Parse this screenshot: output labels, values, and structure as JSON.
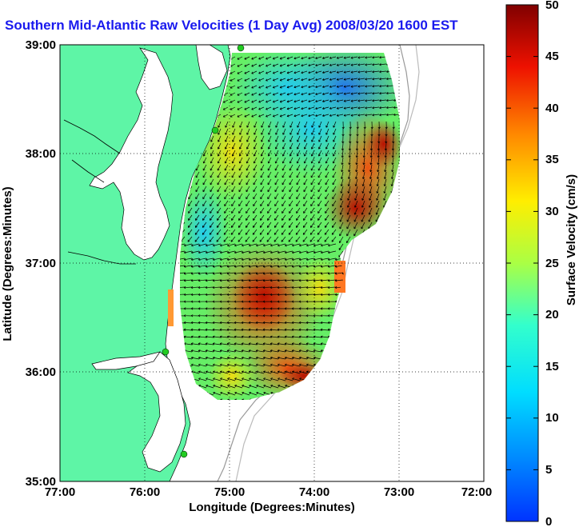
{
  "title": "Southern Mid-Atlantic Raw Velocities (1 Day Avg) 2008/03/20 1600 EST",
  "map": {
    "x_axis_label": "Longitude (Degrees:Minutes)",
    "y_axis_label": "Latitude (Degrees:Minutes)",
    "x_ticks": [
      "77:00",
      "76:00",
      "75:00",
      "74:00",
      "73:00",
      "72:00"
    ],
    "y_ticks": [
      "39:00",
      "38:00",
      "37:00",
      "36:00",
      "35:00"
    ],
    "lon_range": [
      -77,
      -72
    ],
    "lat_range": [
      35,
      39
    ],
    "grid": "dotted at each degree",
    "colors": {
      "land": "#5ef5a6",
      "water": "#ffffff",
      "arrows": "#000000",
      "stations": "#22cc22"
    }
  },
  "colorbar": {
    "label": "Surface Velocity (cm/s)",
    "ticks": [
      "50",
      "45",
      "40",
      "35",
      "30",
      "25",
      "20",
      "15",
      "10",
      "5",
      "0"
    ],
    "range": [
      0,
      50
    ],
    "colormap": "jet"
  }
}
